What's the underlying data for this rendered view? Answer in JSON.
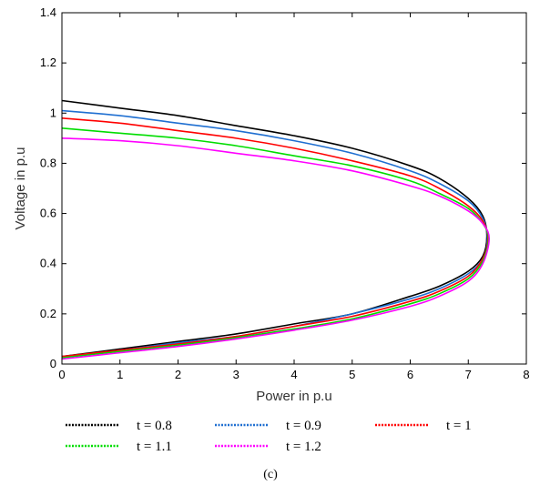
{
  "chart_data": {
    "type": "line",
    "title": "",
    "xlabel": "Power in p.u",
    "ylabel": "Voltage in p.u",
    "xlim": [
      0,
      8
    ],
    "ylim": [
      0,
      1.4
    ],
    "xticks": [
      "0",
      "1",
      "2",
      "3",
      "4",
      "5",
      "6",
      "7",
      "8"
    ],
    "yticks": [
      "0",
      "0.2",
      "0.4",
      "0.6",
      "0.8",
      "1",
      "1.2",
      "1.4"
    ],
    "grid": false,
    "legend_position": "bottom",
    "series": [
      {
        "name": "t = 0.8",
        "color": "#000000",
        "x": [
          0,
          1,
          2,
          3,
          4,
          5,
          6,
          6.5,
          7,
          7.25,
          7.32,
          7.25,
          7,
          6.5,
          6,
          5,
          4,
          3,
          2,
          1,
          0
        ],
        "y": [
          1.05,
          1.02,
          0.99,
          0.95,
          0.91,
          0.86,
          0.79,
          0.74,
          0.66,
          0.59,
          0.51,
          0.43,
          0.37,
          0.31,
          0.27,
          0.2,
          0.16,
          0.12,
          0.09,
          0.06,
          0.03
        ]
      },
      {
        "name": "t = 0.9",
        "color": "#1f6fd1",
        "x": [
          0,
          1,
          2,
          3,
          4,
          5,
          6,
          6.5,
          7,
          7.25,
          7.33,
          7.25,
          7,
          6.5,
          6,
          5,
          4,
          3,
          2,
          1,
          0
        ],
        "y": [
          1.01,
          0.99,
          0.96,
          0.93,
          0.89,
          0.84,
          0.77,
          0.72,
          0.65,
          0.58,
          0.5,
          0.42,
          0.36,
          0.3,
          0.26,
          0.2,
          0.15,
          0.11,
          0.085,
          0.055,
          0.03
        ]
      },
      {
        "name": "t = 1",
        "color": "#ff0000",
        "x": [
          0,
          1,
          2,
          3,
          4,
          5,
          6,
          6.5,
          7,
          7.25,
          7.34,
          7.25,
          7,
          6.5,
          6,
          5,
          4,
          3,
          2,
          1,
          0
        ],
        "y": [
          0.98,
          0.96,
          0.93,
          0.9,
          0.86,
          0.81,
          0.75,
          0.7,
          0.63,
          0.57,
          0.5,
          0.42,
          0.35,
          0.29,
          0.25,
          0.19,
          0.15,
          0.11,
          0.08,
          0.055,
          0.03
        ]
      },
      {
        "name": "t = 1.1",
        "color": "#00dd00",
        "x": [
          0,
          1,
          2,
          3,
          4,
          5,
          6,
          6.5,
          7,
          7.25,
          7.35,
          7.25,
          7,
          6.5,
          6,
          5,
          4,
          3,
          2,
          1,
          0
        ],
        "y": [
          0.94,
          0.92,
          0.9,
          0.87,
          0.83,
          0.79,
          0.73,
          0.68,
          0.62,
          0.56,
          0.5,
          0.41,
          0.34,
          0.28,
          0.24,
          0.18,
          0.14,
          0.105,
          0.075,
          0.05,
          0.025
        ]
      },
      {
        "name": "t = 1.2",
        "color": "#ff00ff",
        "x": [
          0,
          1,
          2,
          3,
          4,
          5,
          6,
          6.5,
          7,
          7.25,
          7.36,
          7.25,
          7,
          6.5,
          6,
          5,
          4,
          3,
          2,
          1,
          0
        ],
        "y": [
          0.9,
          0.89,
          0.87,
          0.84,
          0.81,
          0.77,
          0.71,
          0.67,
          0.61,
          0.56,
          0.5,
          0.4,
          0.33,
          0.27,
          0.23,
          0.175,
          0.135,
          0.1,
          0.07,
          0.045,
          0.02
        ]
      }
    ]
  },
  "caption": "(c)"
}
